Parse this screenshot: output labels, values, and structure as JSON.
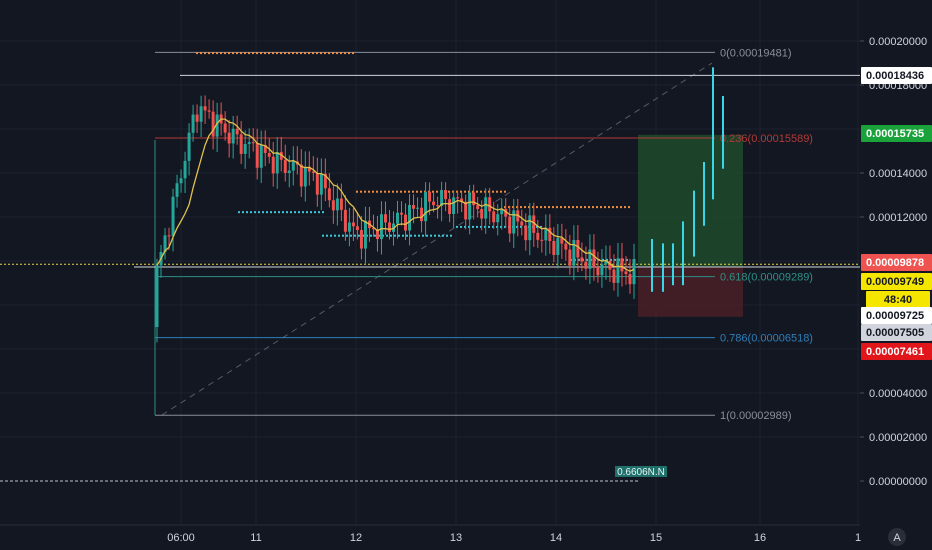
{
  "colors": {
    "background": "#131722",
    "grid": "#1e2230",
    "candle_up": "#26a69a",
    "candle_down": "#ef5350",
    "forecast_candle": "#39d6e8",
    "moving_average": "#e0c24a",
    "fib_0": "#8a8e99",
    "fib_236": "#b23a36",
    "fib_618": "#2e8f86",
    "fib_786": "#2f7fb8",
    "fib_1": "#8a8e99",
    "target_zone": "#1e4a2c",
    "stop_zone": "#4a1e26",
    "dotted_orange": "#f08c3c",
    "dotted_cyan": "#3cc8d8",
    "current_price_line": "#e8d44a"
  },
  "price_axis": {
    "ticks": [
      "0.00020000",
      "0.00018000",
      "0.00014000",
      "0.00012000",
      "0.00004000",
      "0.00002000",
      "0.00000000"
    ],
    "tags": [
      {
        "label": "0.00018436",
        "bg": "#ffffff",
        "fg": "#131722"
      },
      {
        "label": "0.00015735",
        "bg": "#1aa33b",
        "fg": "#ffffff"
      },
      {
        "label": "0.00009878",
        "bg": "#ef5350",
        "fg": "#ffffff"
      },
      {
        "label": "0.00009749",
        "bg": "#f5e600",
        "fg": "#131722"
      },
      {
        "label": "48:40",
        "bg": "#f5e600",
        "fg": "#131722"
      },
      {
        "label": "0.00009725",
        "bg": "#ffffff",
        "fg": "#131722"
      },
      {
        "label": "0.00007505",
        "bg": "#d1d4dc",
        "fg": "#131722"
      },
      {
        "label": "0.00007461",
        "bg": "#e0161b",
        "fg": "#ffffff"
      }
    ]
  },
  "time_axis": {
    "labels": [
      "06:00",
      "11",
      "12",
      "13",
      "14",
      "15",
      "16",
      "1"
    ],
    "settings_icon_label": "A"
  },
  "fib_levels": [
    {
      "ratio_label": "0(0.00019481)",
      "price": 0.00019481,
      "color_key": "fib_0"
    },
    {
      "ratio_label": "0.236(0.00015589)",
      "price": 0.00015589,
      "color_key": "fib_236"
    },
    {
      "ratio_label": "0.618(0.00009289)",
      "price": 9.289e-05,
      "color_key": "fib_618"
    },
    {
      "ratio_label": "0.786(0.00006518)",
      "price": 6.518e-05,
      "color_key": "fib_786"
    },
    {
      "ratio_label": "1(0.00002989)",
      "price": 2.989e-05,
      "color_key": "fib_1"
    }
  ],
  "horizontal_lines": [
    {
      "price": 0.00018436,
      "color": "#d1d4dc"
    },
    {
      "price": 9.725e-05,
      "color": "#d1d4dc"
    }
  ],
  "current_price": 9.749e-05,
  "bottom_indicator_label": "0.6606N.N",
  "chart_data": {
    "type": "candlestick",
    "y_range": [
      0.0,
      0.000205
    ],
    "x_labels": [
      "06:00",
      "11",
      "12",
      "13",
      "14",
      "15",
      "16",
      "1"
    ],
    "approx_closes": [
      9.5e-05,
      0.00017,
      0.000155,
      0.000145,
      0.000138,
      0.000112,
      0.000118,
      0.000128,
      0.000125,
      0.000118,
      0.000108,
      9.8e-05,
      9.4e-05
    ],
    "forecast_closes": [
      9.2e-05,
      9.8e-05,
      9.5e-05,
      0.000108,
      0.000122,
      0.000135,
      0.000148,
      0.00016,
      0.000175,
      0.00018
    ]
  }
}
